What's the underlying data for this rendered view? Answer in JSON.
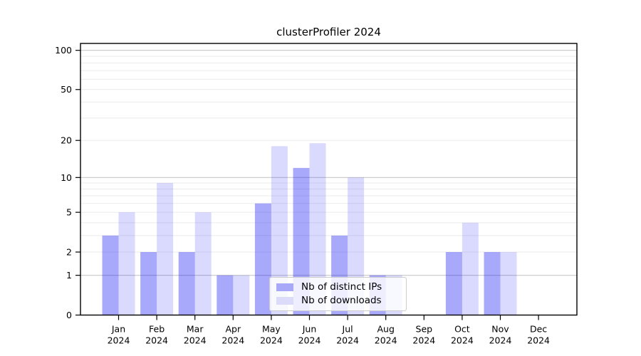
{
  "chart_data": {
    "type": "bar",
    "title": "clusterProfiler 2024",
    "year_label": "2024",
    "months": [
      "Jan",
      "Feb",
      "Mar",
      "Apr",
      "May",
      "Jun",
      "Jul",
      "Aug",
      "Sep",
      "Oct",
      "Nov",
      "Dec"
    ],
    "categories": [
      "Jan 2024",
      "Feb 2024",
      "Mar 2024",
      "Apr 2024",
      "May 2024",
      "Jun 2024",
      "Jul 2024",
      "Aug 2024",
      "Sep 2024",
      "Oct 2024",
      "Nov 2024",
      "Dec 2024"
    ],
    "series": [
      {
        "name": "Nb of distinct IPs",
        "values": [
          3,
          2,
          2,
          1,
          6,
          12,
          3,
          1,
          0,
          2,
          2,
          0
        ],
        "display_color": "#a8a8f8",
        "alpha": 0.35
      },
      {
        "name": "Nb of downloads",
        "values": [
          5,
          9,
          5,
          1,
          18,
          19,
          10,
          1,
          0,
          4,
          2,
          0
        ],
        "display_color": "#dcdcfa",
        "alpha": 0.15
      }
    ],
    "bar_base_color": "#0a0af5",
    "xlabel": "",
    "ylabel": "",
    "y_scale": "log1p",
    "y_ticks": [
      0,
      1,
      2,
      5,
      10,
      20,
      50,
      100
    ],
    "ylim": [
      0,
      113
    ],
    "grid": {
      "major_at": [
        1,
        10,
        100
      ],
      "minor_at": [
        2,
        3,
        4,
        5,
        6,
        7,
        8,
        9,
        20,
        30,
        40,
        50,
        60,
        70,
        80,
        90
      ],
      "major_color": "#c8c8c8",
      "minor_color": "#ebebeb"
    },
    "legend": {
      "position": "inside-lower-center"
    },
    "axis_color": "#000000",
    "text_color": "#000000"
  }
}
